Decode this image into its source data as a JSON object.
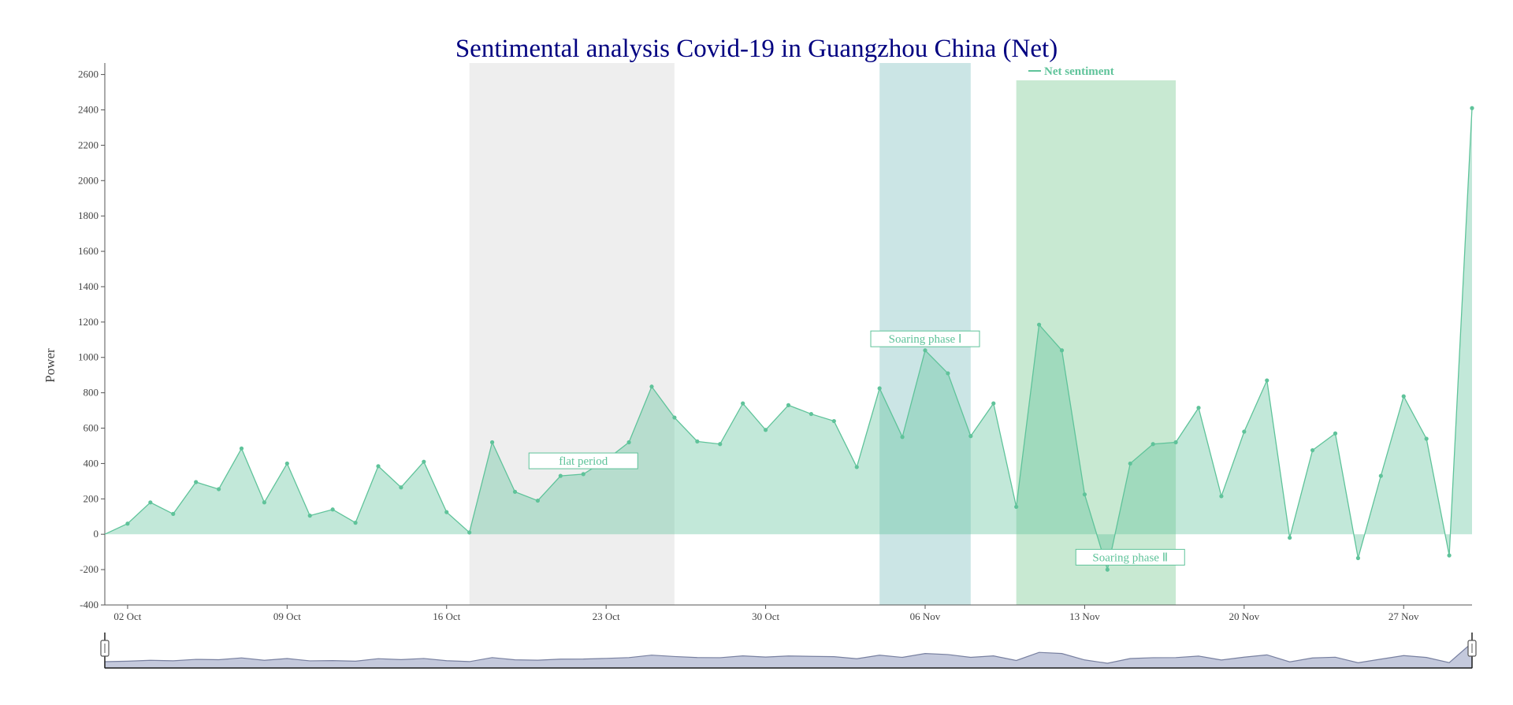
{
  "colors": {
    "title": "#000080",
    "series": "#5fc39a",
    "band_flat": "#e3e3e3",
    "band_soaring1": "#a9d4d4",
    "band_soaring2": "#a4dbb4",
    "zoom_fill": "#c4c9dc",
    "zoom_line": "#7880a0"
  },
  "chart_data": {
    "type": "area",
    "title": "Sentimental analysis Covid-19 in Guangzhou China (Net)",
    "ylabel": "Power",
    "xlabel": "",
    "ylim": [
      -400,
      2600
    ],
    "yticks": [
      -400,
      -200,
      0,
      200,
      400,
      600,
      800,
      1000,
      1200,
      1400,
      1600,
      1800,
      2000,
      2200,
      2400,
      2600
    ],
    "x_start": "2022-10-01",
    "x_end": "2022-11-30",
    "xticks": [
      {
        "date": "2022-10-02",
        "label": "02 Oct"
      },
      {
        "date": "2022-10-09",
        "label": "09 Oct"
      },
      {
        "date": "2022-10-16",
        "label": "16 Oct"
      },
      {
        "date": "2022-10-23",
        "label": "23 Oct"
      },
      {
        "date": "2022-10-30",
        "label": "30 Oct"
      },
      {
        "date": "2022-11-06",
        "label": "06 Nov"
      },
      {
        "date": "2022-11-13",
        "label": "13 Nov"
      },
      {
        "date": "2022-11-20",
        "label": "20 Nov"
      },
      {
        "date": "2022-11-27",
        "label": "27 Nov"
      }
    ],
    "legend": {
      "position": "top-right",
      "entries": [
        "Net sentiment"
      ]
    },
    "grid": false,
    "series": [
      {
        "name": "Net sentiment",
        "x": [
          "2022-10-01",
          "2022-10-02",
          "2022-10-03",
          "2022-10-04",
          "2022-10-05",
          "2022-10-06",
          "2022-10-07",
          "2022-10-08",
          "2022-10-09",
          "2022-10-10",
          "2022-10-11",
          "2022-10-12",
          "2022-10-13",
          "2022-10-14",
          "2022-10-15",
          "2022-10-16",
          "2022-10-17",
          "2022-10-18",
          "2022-10-19",
          "2022-10-20",
          "2022-10-21",
          "2022-10-22",
          "2022-10-23",
          "2022-10-24",
          "2022-10-25",
          "2022-10-26",
          "2022-10-27",
          "2022-10-28",
          "2022-10-29",
          "2022-10-30",
          "2022-10-31",
          "2022-11-01",
          "2022-11-02",
          "2022-11-03",
          "2022-11-04",
          "2022-11-05",
          "2022-11-06",
          "2022-11-07",
          "2022-11-08",
          "2022-11-09",
          "2022-11-10",
          "2022-11-11",
          "2022-11-12",
          "2022-11-13",
          "2022-11-14",
          "2022-11-15",
          "2022-11-16",
          "2022-11-17",
          "2022-11-18",
          "2022-11-19",
          "2022-11-20",
          "2022-11-21",
          "2022-11-22",
          "2022-11-23",
          "2022-11-24",
          "2022-11-25",
          "2022-11-26",
          "2022-11-27",
          "2022-11-28",
          "2022-11-29",
          "2022-11-30"
        ],
        "y": [
          0,
          60,
          180,
          115,
          295,
          255,
          485,
          180,
          400,
          105,
          140,
          65,
          385,
          265,
          410,
          125,
          10,
          520,
          240,
          190,
          330,
          340,
          420,
          520,
          835,
          660,
          525,
          510,
          740,
          590,
          730,
          680,
          640,
          380,
          825,
          550,
          1040,
          910,
          555,
          740,
          155,
          1185,
          1040,
          225,
          -200,
          400,
          510,
          520,
          715,
          215,
          580,
          870,
          -20,
          475,
          570,
          -135,
          330,
          780,
          540,
          -120,
          2410
        ]
      }
    ],
    "bands": [
      {
        "name": "flat",
        "x0": "2022-10-17",
        "x1": "2022-10-26",
        "color": "#e3e3e3"
      },
      {
        "name": "soaring1",
        "x0": "2022-11-04",
        "x1": "2022-11-08",
        "color": "#a9d4d4"
      },
      {
        "name": "soaring2",
        "x0": "2022-11-10",
        "x1": "2022-11-17",
        "color": "#a4dbb4"
      }
    ],
    "annotations": [
      {
        "text": "flat period",
        "x": "2022-10-22",
        "y": 415
      },
      {
        "text": "Soaring phase Ⅰ",
        "x": "2022-11-06",
        "y": 1105
      },
      {
        "text": "Soaring phase Ⅱ",
        "x": "2022-11-15",
        "y": -130
      }
    ],
    "zoom_range": [
      0,
      100
    ]
  }
}
